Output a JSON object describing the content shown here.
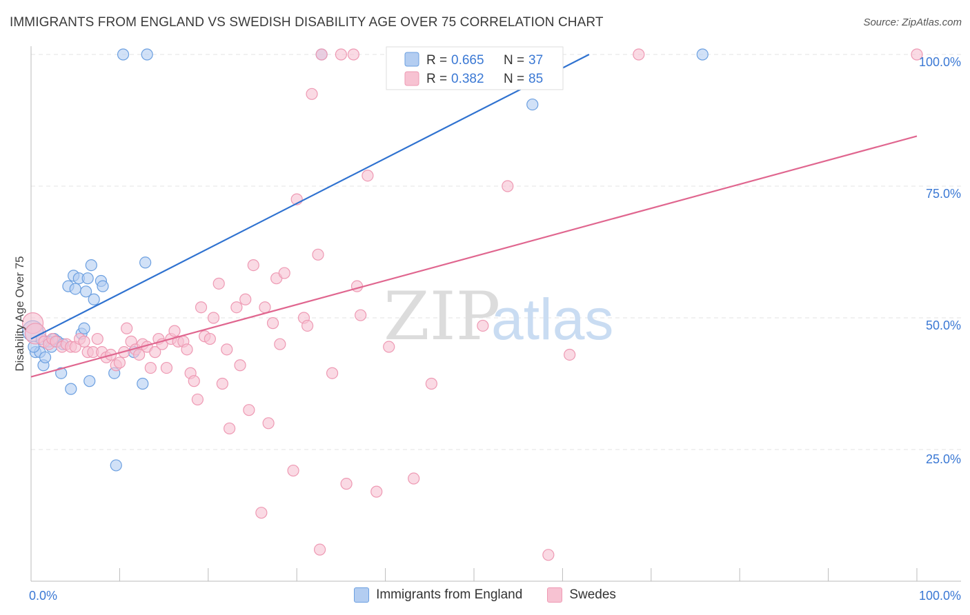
{
  "title": "IMMIGRANTS FROM ENGLAND VS SWEDISH DISABILITY AGE OVER 75 CORRELATION CHART",
  "source": "Source: ZipAtlas.com",
  "watermark": {
    "zip": "ZIP",
    "atlas": "atlas"
  },
  "chart_data": {
    "type": "scatter",
    "title": "IMMIGRANTS FROM ENGLAND VS SWEDISH DISABILITY AGE OVER 75 CORRELATION CHART",
    "xlabel": "",
    "ylabel": "Disability Age Over 75",
    "xlim": [
      0,
      100
    ],
    "ylim": [
      0,
      100
    ],
    "x_tick_labels": {
      "left": "0.0%",
      "right": "100.0%"
    },
    "y_ticks": [
      25,
      50,
      75,
      100
    ],
    "y_tick_labels": [
      "25.0%",
      "50.0%",
      "75.0%",
      "100.0%"
    ],
    "legend_position": "top-center",
    "stats": [
      {
        "r_label": "R =",
        "r_value": "0.665",
        "n_label": "N =",
        "n_value": "37"
      },
      {
        "r_label": "R =",
        "r_value": "0.382",
        "n_label": "N =",
        "n_value": "85"
      }
    ],
    "series": [
      {
        "name": "Immigrants from England",
        "color": "#6b9fe0",
        "fill": "#b3cdf1",
        "line_color": "#2f72d0",
        "trend": {
          "x0": 0,
          "y0": 46.0,
          "x1": 63,
          "y1": 100.0
        },
        "points": [
          [
            0.2,
            47.5
          ],
          [
            0.5,
            43.5
          ],
          [
            1,
            43.5
          ],
          [
            1.2,
            46
          ],
          [
            1.4,
            41
          ],
          [
            1.6,
            42.5
          ],
          [
            2,
            45.5
          ],
          [
            2.3,
            44.5
          ],
          [
            2.6,
            46
          ],
          [
            3,
            45.5
          ],
          [
            3.4,
            39.5
          ],
          [
            4.2,
            56
          ],
          [
            4.5,
            36.5
          ],
          [
            4.8,
            58
          ],
          [
            5,
            55.5
          ],
          [
            5.4,
            57.5
          ],
          [
            5.7,
            47
          ],
          [
            6,
            48
          ],
          [
            6.2,
            55
          ],
          [
            6.4,
            57.5
          ],
          [
            6.6,
            38
          ],
          [
            6.8,
            60
          ],
          [
            7.1,
            53.5
          ],
          [
            7.9,
            57
          ],
          [
            8.1,
            56
          ],
          [
            9.4,
            39.5
          ],
          [
            9.6,
            22
          ],
          [
            10.4,
            100
          ],
          [
            11.6,
            43.5
          ],
          [
            12.6,
            37.5
          ],
          [
            12.9,
            60.5
          ],
          [
            13.1,
            100
          ],
          [
            32.8,
            100
          ],
          [
            56.6,
            90.5
          ],
          [
            75.8,
            100
          ],
          [
            0.3,
            44.5
          ],
          [
            3.6,
            45
          ]
        ]
      },
      {
        "name": "Swedes",
        "color": "#ee99b3",
        "fill": "#f7c2d2",
        "line_color": "#e0668f",
        "trend": {
          "x0": 0,
          "y0": 38.8,
          "x1": 100,
          "y1": 84.5
        },
        "points": [
          [
            0.2,
            49
          ],
          [
            0.5,
            47
          ],
          [
            1.5,
            45.5
          ],
          [
            2,
            45
          ],
          [
            2.4,
            46
          ],
          [
            2.8,
            45.5
          ],
          [
            3.5,
            44.5
          ],
          [
            4,
            45
          ],
          [
            4.5,
            44.5
          ],
          [
            5,
            44.5
          ],
          [
            5.5,
            46
          ],
          [
            6,
            45.5
          ],
          [
            6.4,
            43.5
          ],
          [
            7,
            43.5
          ],
          [
            7.5,
            46
          ],
          [
            8,
            43.5
          ],
          [
            8.5,
            42.5
          ],
          [
            9,
            43
          ],
          [
            9.6,
            41
          ],
          [
            10,
            41.5
          ],
          [
            10.5,
            43.5
          ],
          [
            10.8,
            48
          ],
          [
            11.3,
            45.5
          ],
          [
            11.8,
            44
          ],
          [
            12.2,
            43
          ],
          [
            12.6,
            45
          ],
          [
            13.1,
            44.5
          ],
          [
            13.5,
            40.5
          ],
          [
            14,
            43.5
          ],
          [
            14.4,
            46
          ],
          [
            14.8,
            45
          ],
          [
            15.3,
            40.5
          ],
          [
            15.8,
            46
          ],
          [
            16.2,
            47.5
          ],
          [
            16.6,
            45.5
          ],
          [
            17.2,
            45.5
          ],
          [
            17.6,
            44
          ],
          [
            18,
            39.5
          ],
          [
            18.4,
            38
          ],
          [
            18.8,
            34.5
          ],
          [
            19.2,
            52
          ],
          [
            19.6,
            46.5
          ],
          [
            20.2,
            46
          ],
          [
            20.6,
            50
          ],
          [
            21.2,
            56.5
          ],
          [
            21.6,
            37.5
          ],
          [
            22.1,
            44
          ],
          [
            22.4,
            29
          ],
          [
            23.2,
            52
          ],
          [
            23.6,
            41
          ],
          [
            24.2,
            53.5
          ],
          [
            24.6,
            32.5
          ],
          [
            25.1,
            60
          ],
          [
            26,
            13
          ],
          [
            26.4,
            52
          ],
          [
            26.8,
            30
          ],
          [
            27.3,
            49
          ],
          [
            27.7,
            57.5
          ],
          [
            28.1,
            45
          ],
          [
            28.6,
            58.5
          ],
          [
            29.6,
            21
          ],
          [
            30,
            72.5
          ],
          [
            30.8,
            50
          ],
          [
            31.2,
            48.5
          ],
          [
            31.7,
            92.5
          ],
          [
            32.4,
            62
          ],
          [
            32.6,
            6
          ],
          [
            32.8,
            100
          ],
          [
            34,
            39.5
          ],
          [
            35,
            100
          ],
          [
            35.6,
            18.5
          ],
          [
            36.4,
            100
          ],
          [
            36.8,
            56
          ],
          [
            37.2,
            50.5
          ],
          [
            38,
            77
          ],
          [
            39,
            17
          ],
          [
            40.4,
            44.5
          ],
          [
            43.2,
            19.5
          ],
          [
            45.2,
            37.5
          ],
          [
            51,
            48.5
          ],
          [
            53.8,
            75
          ],
          [
            58.4,
            5
          ],
          [
            60.8,
            43
          ],
          [
            68.6,
            100
          ],
          [
            100,
            100
          ]
        ]
      }
    ]
  }
}
